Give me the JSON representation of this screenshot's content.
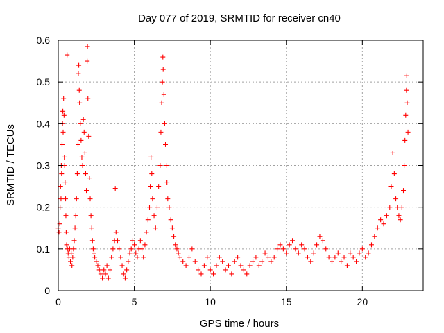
{
  "chart_data": {
    "type": "scatter",
    "title": "Day 077 of 2019, SRMTID for receiver cn40",
    "xlabel": "GPS time / hours",
    "ylabel": "SRMTID / TECUs",
    "xlim": [
      0,
      24
    ],
    "ylim": [
      0,
      0.6
    ],
    "x_ticks": [
      0,
      5,
      10,
      15,
      20
    ],
    "x_tick_labels": [
      "0",
      "5",
      "10",
      "15",
      "20"
    ],
    "y_ticks": [
      0,
      0.1,
      0.2,
      0.3,
      0.4,
      0.5,
      0.6
    ],
    "y_tick_labels": [
      "0",
      "0.1",
      "0.2",
      "0.3",
      "0.4",
      "0.5",
      "0.6"
    ],
    "grid": true,
    "marker": "+",
    "color": "#ff0000",
    "series": [
      {
        "name": "SRMTID",
        "points": [
          [
            0.0,
            0.15
          ],
          [
            0.05,
            0.14
          ],
          [
            0.1,
            0.16
          ],
          [
            0.12,
            0.2
          ],
          [
            0.15,
            0.25
          ],
          [
            0.18,
            0.22
          ],
          [
            0.2,
            0.3
          ],
          [
            0.22,
            0.28
          ],
          [
            0.25,
            0.35
          ],
          [
            0.28,
            0.4
          ],
          [
            0.3,
            0.43
          ],
          [
            0.32,
            0.38
          ],
          [
            0.35,
            0.46
          ],
          [
            0.38,
            0.42
          ],
          [
            0.4,
            0.32
          ],
          [
            0.42,
            0.3
          ],
          [
            0.45,
            0.26
          ],
          [
            0.48,
            0.22
          ],
          [
            0.5,
            0.18
          ],
          [
            0.52,
            0.14
          ],
          [
            0.55,
            0.11
          ],
          [
            0.58,
            0.565
          ],
          [
            0.6,
            0.1
          ],
          [
            0.65,
            0.09
          ],
          [
            0.7,
            0.08
          ],
          [
            0.75,
            0.1
          ],
          [
            0.8,
            0.07
          ],
          [
            0.85,
            0.09
          ],
          [
            0.9,
            0.06
          ],
          [
            0.95,
            0.08
          ],
          [
            1.0,
            0.1
          ],
          [
            1.05,
            0.12
          ],
          [
            1.1,
            0.15
          ],
          [
            1.15,
            0.18
          ],
          [
            1.2,
            0.22
          ],
          [
            1.25,
            0.28
          ],
          [
            1.3,
            0.35
          ],
          [
            1.32,
            0.52
          ],
          [
            1.35,
            0.54
          ],
          [
            1.38,
            0.48
          ],
          [
            1.4,
            0.45
          ],
          [
            1.45,
            0.4
          ],
          [
            1.5,
            0.36
          ],
          [
            1.55,
            0.32
          ],
          [
            1.6,
            0.3
          ],
          [
            1.65,
            0.41
          ],
          [
            1.7,
            0.38
          ],
          [
            1.75,
            0.33
          ],
          [
            1.8,
            0.28
          ],
          [
            1.85,
            0.24
          ],
          [
            1.9,
            0.55
          ],
          [
            1.92,
            0.585
          ],
          [
            1.95,
            0.46
          ],
          [
            2.0,
            0.37
          ],
          [
            2.05,
            0.27
          ],
          [
            2.1,
            0.22
          ],
          [
            2.15,
            0.18
          ],
          [
            2.2,
            0.15
          ],
          [
            2.25,
            0.12
          ],
          [
            2.3,
            0.1
          ],
          [
            2.35,
            0.09
          ],
          [
            2.4,
            0.08
          ],
          [
            2.5,
            0.07
          ],
          [
            2.6,
            0.06
          ],
          [
            2.7,
            0.05
          ],
          [
            2.8,
            0.04
          ],
          [
            2.9,
            0.03
          ],
          [
            3.0,
            0.05
          ],
          [
            3.1,
            0.04
          ],
          [
            3.2,
            0.06
          ],
          [
            3.3,
            0.03
          ],
          [
            3.4,
            0.05
          ],
          [
            3.5,
            0.08
          ],
          [
            3.6,
            0.1
          ],
          [
            3.7,
            0.12
          ],
          [
            3.75,
            0.245
          ],
          [
            3.8,
            0.14
          ],
          [
            3.9,
            0.12
          ],
          [
            4.0,
            0.1
          ],
          [
            4.1,
            0.08
          ],
          [
            4.2,
            0.06
          ],
          [
            4.3,
            0.04
          ],
          [
            4.4,
            0.03
          ],
          [
            4.5,
            0.05
          ],
          [
            4.6,
            0.07
          ],
          [
            4.7,
            0.09
          ],
          [
            4.8,
            0.1
          ],
          [
            4.9,
            0.12
          ],
          [
            5.0,
            0.11
          ],
          [
            5.1,
            0.09
          ],
          [
            5.2,
            0.08
          ],
          [
            5.3,
            0.1
          ],
          [
            5.4,
            0.12
          ],
          [
            5.5,
            0.1
          ],
          [
            5.6,
            0.08
          ],
          [
            5.7,
            0.11
          ],
          [
            5.8,
            0.14
          ],
          [
            5.9,
            0.17
          ],
          [
            6.0,
            0.2
          ],
          [
            6.05,
            0.25
          ],
          [
            6.1,
            0.32
          ],
          [
            6.15,
            0.28
          ],
          [
            6.2,
            0.22
          ],
          [
            6.3,
            0.18
          ],
          [
            6.4,
            0.15
          ],
          [
            6.5,
            0.2
          ],
          [
            6.6,
            0.25
          ],
          [
            6.7,
            0.3
          ],
          [
            6.75,
            0.38
          ],
          [
            6.8,
            0.45
          ],
          [
            6.85,
            0.5
          ],
          [
            6.88,
            0.56
          ],
          [
            6.9,
            0.53
          ],
          [
            6.95,
            0.47
          ],
          [
            7.0,
            0.4
          ],
          [
            7.05,
            0.35
          ],
          [
            7.1,
            0.3
          ],
          [
            7.15,
            0.26
          ],
          [
            7.2,
            0.22
          ],
          [
            7.3,
            0.2
          ],
          [
            7.4,
            0.17
          ],
          [
            7.5,
            0.15
          ],
          [
            7.6,
            0.13
          ],
          [
            7.7,
            0.11
          ],
          [
            7.8,
            0.1
          ],
          [
            7.9,
            0.09
          ],
          [
            8.0,
            0.08
          ],
          [
            8.2,
            0.07
          ],
          [
            8.4,
            0.06
          ],
          [
            8.6,
            0.08
          ],
          [
            8.8,
            0.1
          ],
          [
            9.0,
            0.07
          ],
          [
            9.2,
            0.05
          ],
          [
            9.4,
            0.04
          ],
          [
            9.6,
            0.06
          ],
          [
            9.8,
            0.08
          ],
          [
            10.0,
            0.05
          ],
          [
            10.2,
            0.04
          ],
          [
            10.4,
            0.06
          ],
          [
            10.6,
            0.08
          ],
          [
            10.8,
            0.07
          ],
          [
            11.0,
            0.05
          ],
          [
            11.2,
            0.06
          ],
          [
            11.4,
            0.04
          ],
          [
            11.6,
            0.07
          ],
          [
            11.8,
            0.08
          ],
          [
            12.0,
            0.06
          ],
          [
            12.2,
            0.05
          ],
          [
            12.4,
            0.04
          ],
          [
            12.6,
            0.06
          ],
          [
            12.8,
            0.07
          ],
          [
            13.0,
            0.08
          ],
          [
            13.2,
            0.06
          ],
          [
            13.4,
            0.07
          ],
          [
            13.6,
            0.09
          ],
          [
            13.8,
            0.08
          ],
          [
            14.0,
            0.07
          ],
          [
            14.2,
            0.08
          ],
          [
            14.4,
            0.1
          ],
          [
            14.6,
            0.11
          ],
          [
            14.8,
            0.1
          ],
          [
            15.0,
            0.09
          ],
          [
            15.2,
            0.11
          ],
          [
            15.4,
            0.12
          ],
          [
            15.6,
            0.1
          ],
          [
            15.8,
            0.09
          ],
          [
            16.0,
            0.11
          ],
          [
            16.2,
            0.1
          ],
          [
            16.4,
            0.08
          ],
          [
            16.6,
            0.07
          ],
          [
            16.8,
            0.09
          ],
          [
            17.0,
            0.11
          ],
          [
            17.2,
            0.13
          ],
          [
            17.4,
            0.12
          ],
          [
            17.6,
            0.1
          ],
          [
            17.8,
            0.08
          ],
          [
            18.0,
            0.07
          ],
          [
            18.2,
            0.08
          ],
          [
            18.4,
            0.09
          ],
          [
            18.6,
            0.07
          ],
          [
            18.8,
            0.08
          ],
          [
            19.0,
            0.06
          ],
          [
            19.2,
            0.09
          ],
          [
            19.4,
            0.08
          ],
          [
            19.6,
            0.07
          ],
          [
            19.8,
            0.09
          ],
          [
            20.0,
            0.1
          ],
          [
            20.2,
            0.08
          ],
          [
            20.4,
            0.09
          ],
          [
            20.6,
            0.11
          ],
          [
            20.8,
            0.13
          ],
          [
            21.0,
            0.15
          ],
          [
            21.2,
            0.17
          ],
          [
            21.4,
            0.16
          ],
          [
            21.6,
            0.18
          ],
          [
            21.8,
            0.2
          ],
          [
            21.9,
            0.25
          ],
          [
            22.0,
            0.33
          ],
          [
            22.1,
            0.28
          ],
          [
            22.2,
            0.22
          ],
          [
            22.3,
            0.2
          ],
          [
            22.4,
            0.18
          ],
          [
            22.5,
            0.17
          ],
          [
            22.6,
            0.2
          ],
          [
            22.7,
            0.24
          ],
          [
            22.75,
            0.3
          ],
          [
            22.8,
            0.36
          ],
          [
            22.85,
            0.42
          ],
          [
            22.9,
            0.48
          ],
          [
            22.92,
            0.515
          ],
          [
            22.95,
            0.45
          ],
          [
            23.0,
            0.38
          ]
        ]
      }
    ]
  }
}
